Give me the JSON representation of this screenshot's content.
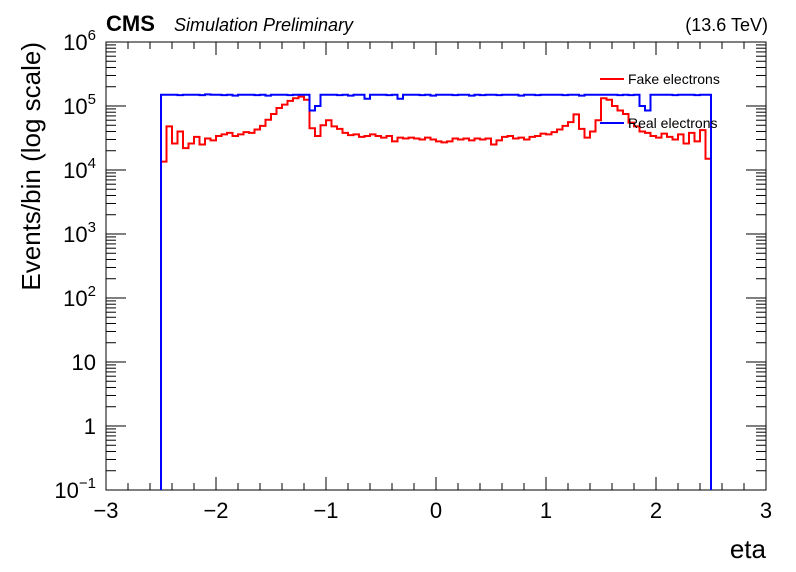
{
  "header": {
    "experiment": "CMS",
    "status": "Simulation Preliminary",
    "energy": "(13.6 TeV)"
  },
  "chart_data": {
    "type": "line",
    "xlabel": "eta",
    "ylabel": "Events/bin (log scale)",
    "xlim": [
      -3,
      3
    ],
    "ylim": [
      0.1,
      1000000
    ],
    "log_y": true,
    "x_ticks": [
      -3,
      -2,
      -1,
      0,
      1,
      2,
      3
    ],
    "x_tick_labels": [
      "−3",
      "−2",
      "−1",
      "0",
      "1",
      "2",
      "3"
    ],
    "y_ticks": [
      0.1,
      1,
      10,
      100,
      1000,
      10000,
      100000,
      1000000
    ],
    "y_tick_labels": [
      {
        "base": "10",
        "exp": "−1"
      },
      {
        "base": "1",
        "exp": ""
      },
      {
        "base": "10",
        "exp": ""
      },
      {
        "base": "10",
        "exp": "2"
      },
      {
        "base": "10",
        "exp": "3"
      },
      {
        "base": "10",
        "exp": "4"
      },
      {
        "base": "10",
        "exp": "5"
      },
      {
        "base": "10",
        "exp": "6"
      }
    ],
    "bin_edges": [
      -2.5,
      2.5
    ],
    "n_bins": 100,
    "legend": {
      "position": "top-right"
    },
    "series": [
      {
        "name": "Fake electrons",
        "color": "#ff0000",
        "values": [
          13500,
          48000,
          26000,
          40000,
          22000,
          26000,
          33000,
          25000,
          31000,
          29000,
          34000,
          36000,
          38000,
          34000,
          36000,
          39000,
          38000,
          43000,
          49000,
          61000,
          75000,
          93000,
          105000,
          120000,
          132000,
          140000,
          125000,
          45000,
          34000,
          50000,
          60000,
          48000,
          44000,
          38000,
          35000,
          36000,
          33000,
          34000,
          36000,
          34000,
          32000,
          34000,
          28000,
          32000,
          31000,
          32000,
          31000,
          30000,
          32000,
          30000,
          28000,
          27000,
          28000,
          31000,
          30000,
          31000,
          29000,
          31000,
          30000,
          31000,
          25000,
          29000,
          33000,
          34000,
          31000,
          32000,
          30000,
          33000,
          34000,
          37000,
          36000,
          39000,
          43000,
          49000,
          56000,
          74000,
          44000,
          32000,
          40000,
          60000,
          132000,
          125000,
          100000,
          85000,
          75000,
          55000,
          48000,
          40000,
          38000,
          34000,
          32000,
          37000,
          33000,
          30000,
          36000,
          26000,
          38000,
          28000,
          42000,
          15000
        ]
      },
      {
        "name": "Real electrons",
        "color": "#0000ff",
        "values": [
          150000,
          150000,
          150000,
          148000,
          150000,
          150000,
          150000,
          148000,
          152000,
          150000,
          150000,
          148000,
          150000,
          145000,
          150000,
          150000,
          150000,
          148000,
          150000,
          145000,
          150000,
          150000,
          150000,
          148000,
          150000,
          150000,
          150000,
          85000,
          100000,
          150000,
          150000,
          150000,
          148000,
          150000,
          145000,
          150000,
          150000,
          130000,
          150000,
          150000,
          150000,
          148000,
          150000,
          130000,
          150000,
          150000,
          150000,
          148000,
          150000,
          145000,
          150000,
          150000,
          150000,
          148000,
          150000,
          150000,
          145000,
          150000,
          148000,
          150000,
          150000,
          148000,
          150000,
          150000,
          150000,
          145000,
          150000,
          150000,
          148000,
          150000,
          150000,
          150000,
          150000,
          148000,
          150000,
          150000,
          145000,
          150000,
          150000,
          150000,
          150000,
          150000,
          150000,
          148000,
          150000,
          148000,
          150000,
          100000,
          85000,
          150000,
          150000,
          150000,
          150000,
          148000,
          150000,
          150000,
          150000,
          148000,
          150000,
          150000
        ]
      }
    ]
  }
}
